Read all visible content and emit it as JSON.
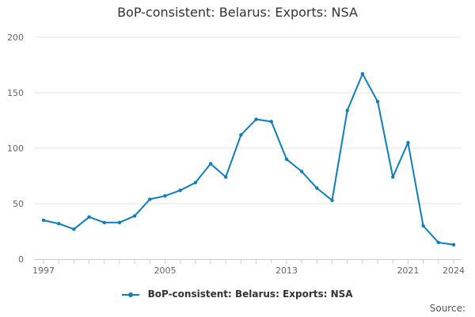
{
  "title": "BoP-consistent: Belarus: Exports: NSA",
  "source_label": "Source:",
  "legend": {
    "label": "BoP-consistent: Belarus: Exports: NSA"
  },
  "colors": {
    "series": "#0f7dba",
    "grid": "#e6e6e6",
    "axis": "#cccccc",
    "text": "#666666"
  },
  "chart_data": {
    "type": "line",
    "title": "BoP-consistent: Belarus: Exports: NSA",
    "xlabel": "",
    "ylabel": "",
    "xlim": [
      1997,
      2024
    ],
    "ylim": [
      0,
      200
    ],
    "y_ticks": [
      0,
      50,
      100,
      150,
      200
    ],
    "x_tick_labels": [
      1997,
      2005,
      2013,
      2021,
      2024
    ],
    "grid": true,
    "legend_position": "bottom",
    "series": [
      {
        "name": "BoP-consistent: Belarus: Exports: NSA",
        "x": [
          1997,
          1998,
          1999,
          2000,
          2001,
          2002,
          2003,
          2004,
          2005,
          2006,
          2007,
          2008,
          2009,
          2010,
          2011,
          2012,
          2013,
          2014,
          2015,
          2016,
          2017,
          2018,
          2019,
          2020,
          2021,
          2022,
          2023,
          2024
        ],
        "values": [
          35,
          32,
          27,
          38,
          33,
          33,
          39,
          54,
          57,
          62,
          69,
          86,
          74,
          112,
          126,
          124,
          90,
          79,
          64,
          53,
          134,
          167,
          142,
          74,
          105,
          30,
          15,
          13
        ]
      }
    ]
  }
}
